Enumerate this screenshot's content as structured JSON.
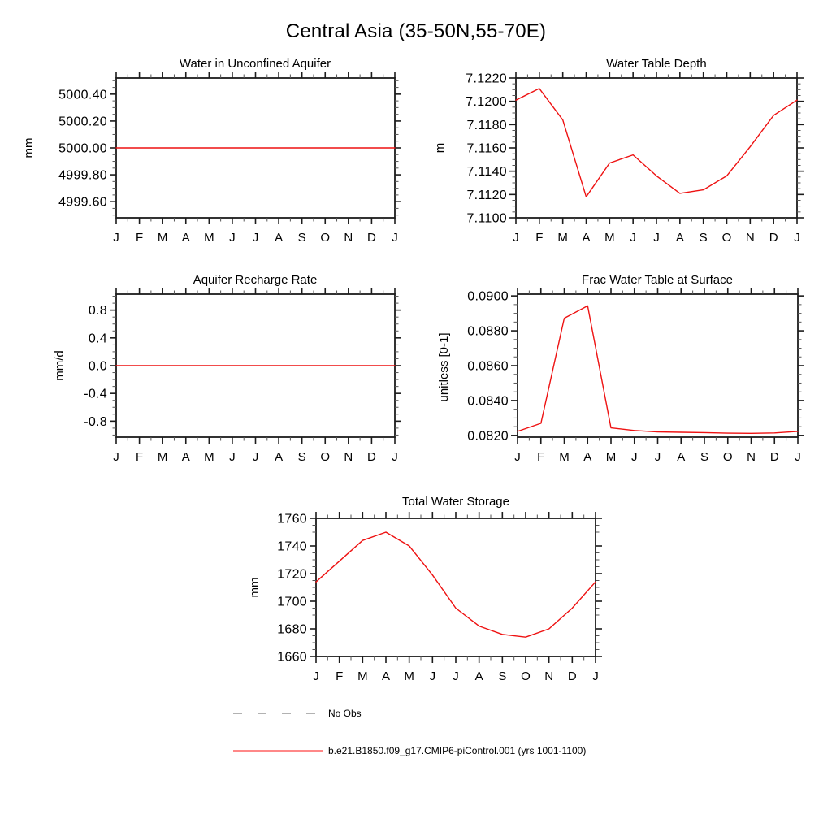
{
  "figure": {
    "title": "Central Asia (35-50N,55-70E)"
  },
  "legend": {
    "items": [
      {
        "label": "No Obs",
        "style": "dashed",
        "color": "#999999"
      },
      {
        "label": "b.e21.B1850.f09_g17.CMIP6-piControl.001 (yrs 1001-1100)",
        "style": "solid",
        "color": "#ff4040"
      }
    ]
  },
  "chart_data": [
    {
      "type": "line",
      "title": "Water in Unconfined Aquifer",
      "xlabel": "",
      "ylabel": "mm",
      "categories": [
        "J",
        "F",
        "M",
        "A",
        "M",
        "J",
        "J",
        "A",
        "S",
        "O",
        "N",
        "D",
        "J"
      ],
      "yticks": [
        4999.6,
        4999.8,
        5000.0,
        5000.2,
        5000.4
      ],
      "ytick_labels": [
        "4999.60",
        "4999.80",
        "5000.00",
        "5000.20",
        "5000.40"
      ],
      "ylim": [
        4999.48,
        5000.52
      ],
      "y_minor_step": 0.05,
      "grid": false,
      "series": [
        {
          "name": "b.e21.B1850.f09_g17.CMIP6-piControl.001 (yrs 1001-1100)",
          "color": "#ee1111",
          "values": [
            5000.0,
            5000.0,
            5000.0,
            5000.0,
            5000.0,
            5000.0,
            5000.0,
            5000.0,
            5000.0,
            5000.0,
            5000.0,
            5000.0,
            5000.0
          ]
        }
      ]
    },
    {
      "type": "line",
      "title": "Water Table Depth",
      "xlabel": "",
      "ylabel": "m",
      "categories": [
        "J",
        "F",
        "M",
        "A",
        "M",
        "J",
        "J",
        "A",
        "S",
        "O",
        "N",
        "D",
        "J"
      ],
      "yticks": [
        7.11,
        7.112,
        7.114,
        7.116,
        7.118,
        7.12,
        7.122
      ],
      "ytick_labels": [
        "7.1100",
        "7.1120",
        "7.1140",
        "7.1160",
        "7.1180",
        "7.1200",
        "7.1220"
      ],
      "ylim": [
        7.11,
        7.122
      ],
      "y_minor_step": 0.0005,
      "grid": false,
      "series": [
        {
          "name": "b.e21.B1850.f09_g17.CMIP6-piControl.001 (yrs 1001-1100)",
          "color": "#ee1111",
          "values": [
            7.1201,
            7.1211,
            7.1184,
            7.1118,
            7.1147,
            7.1154,
            7.1136,
            7.1121,
            7.1124,
            7.1136,
            7.1161,
            7.1188,
            7.1201
          ]
        }
      ]
    },
    {
      "type": "line",
      "title": "Aquifer Recharge Rate",
      "xlabel": "",
      "ylabel": "mm/d",
      "categories": [
        "J",
        "F",
        "M",
        "A",
        "M",
        "J",
        "J",
        "A",
        "S",
        "O",
        "N",
        "D",
        "J"
      ],
      "yticks": [
        -0.8,
        -0.4,
        0.0,
        0.4,
        0.8
      ],
      "ytick_labels": [
        "-0.8",
        "-0.4",
        "0.0",
        "0.4",
        "0.8"
      ],
      "ylim": [
        -1.03,
        1.03
      ],
      "y_minor_step": 0.1,
      "grid": false,
      "series": [
        {
          "name": "b.e21.B1850.f09_g17.CMIP6-piControl.001 (yrs 1001-1100)",
          "color": "#ee1111",
          "values": [
            0.0,
            0.0,
            0.0,
            0.0,
            0.0,
            0.0,
            0.0,
            0.0,
            0.0,
            0.0,
            0.0,
            0.0,
            0.0
          ]
        }
      ]
    },
    {
      "type": "line",
      "title": "Frac Water Table at Surface",
      "xlabel": "",
      "ylabel": "unitless [0-1]",
      "categories": [
        "J",
        "F",
        "M",
        "A",
        "M",
        "J",
        "J",
        "A",
        "S",
        "O",
        "N",
        "D",
        "J"
      ],
      "yticks": [
        0.082,
        0.084,
        0.086,
        0.088,
        0.09
      ],
      "ytick_labels": [
        "0.0820",
        "0.0840",
        "0.0860",
        "0.0880",
        "0.0900"
      ],
      "ylim": [
        0.0819,
        0.0901
      ],
      "y_minor_step": 0.0005,
      "grid": false,
      "series": [
        {
          "name": "b.e21.B1850.f09_g17.CMIP6-piControl.001 (yrs 1001-1100)",
          "color": "#ee1111",
          "values": [
            0.08223,
            0.08269,
            0.08872,
            0.08943,
            0.08243,
            0.08228,
            0.0822,
            0.08218,
            0.08216,
            0.08213,
            0.08212,
            0.08214,
            0.08223
          ]
        }
      ]
    },
    {
      "type": "line",
      "title": "Total Water Storage",
      "xlabel": "",
      "ylabel": "mm",
      "categories": [
        "J",
        "F",
        "M",
        "A",
        "M",
        "J",
        "J",
        "A",
        "S",
        "O",
        "N",
        "D",
        "J"
      ],
      "yticks": [
        1660,
        1680,
        1700,
        1720,
        1740,
        1760
      ],
      "ytick_labels": [
        "1660",
        "1680",
        "1700",
        "1720",
        "1740",
        "1760"
      ],
      "ylim": [
        1660,
        1760
      ],
      "y_minor_step": 5,
      "grid": false,
      "series": [
        {
          "name": "b.e21.B1850.f09_g17.CMIP6-piControl.001 (yrs 1001-1100)",
          "color": "#ee1111",
          "values": [
            1714,
            1729,
            1744,
            1750,
            1740,
            1719,
            1695,
            1682,
            1676,
            1674,
            1680,
            1695,
            1714
          ]
        }
      ]
    }
  ]
}
